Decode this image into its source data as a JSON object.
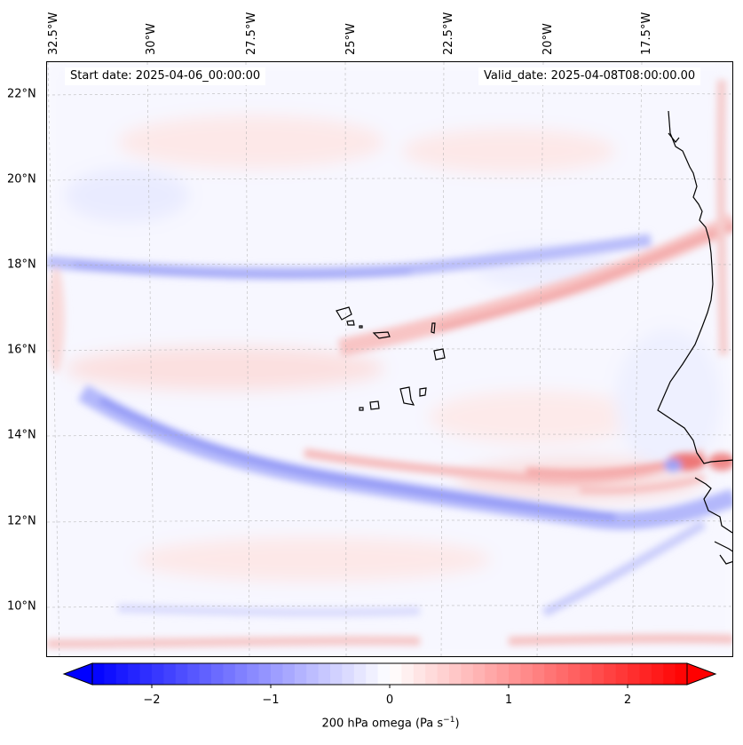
{
  "header": {
    "start_date": "Start date: 2025-04-06_00:00:00",
    "valid_date": "Valid_date: 2025-04-08T08:00:00.00"
  },
  "longitude_labels": [
    "32.5°W",
    "30°W",
    "27.5°W",
    "25°W",
    "22.5°W",
    "20°W",
    "17.5°W"
  ],
  "latitude_labels": [
    "22°N",
    "20°N",
    "18°N",
    "16°N",
    "14°N",
    "12°N",
    "10°N"
  ],
  "colorbar": {
    "title": "200 hPa omega (Pa s",
    "title_sup": "−1",
    "title_end": ")",
    "tick_labels": [
      "−2",
      "−1",
      "0",
      "1",
      "2"
    ],
    "tick_values": [
      -2,
      -1,
      0,
      1,
      2
    ],
    "range": [
      -2.5,
      2.5
    ],
    "levels": 50,
    "colormap": "bwr",
    "extend": "both"
  },
  "colors": {
    "negative": "#0000ff",
    "positive": "#ff0000",
    "neutral": "#ffffff",
    "coastline": "#000000"
  }
}
